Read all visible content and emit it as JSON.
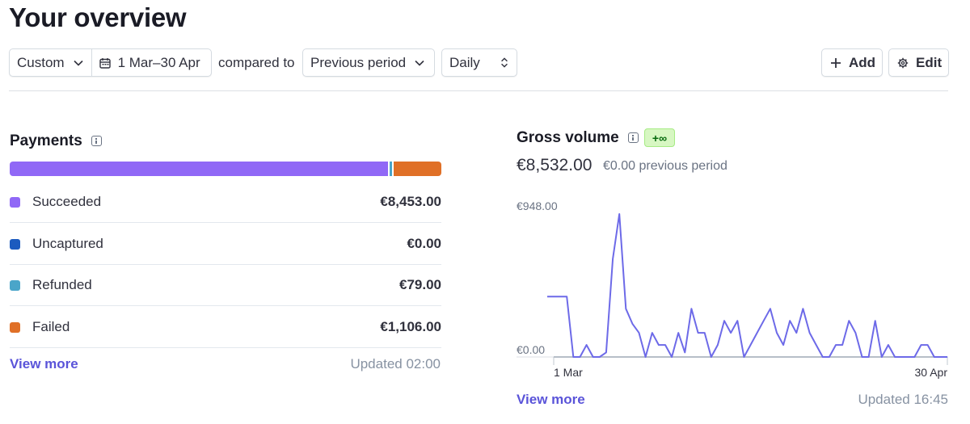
{
  "page": {
    "title": "Your overview"
  },
  "filters": {
    "range_type": "Custom",
    "date_range": "1 Mar–30 Apr",
    "compared_to_label": "compared to",
    "comparison": "Previous period",
    "interval": "Daily"
  },
  "actions": {
    "add_label": "Add",
    "edit_label": "Edit"
  },
  "payments": {
    "title": "Payments",
    "items": [
      {
        "label": "Succeeded",
        "value": "€8,453.00",
        "amount": 8453.0,
        "color": "#9068f6"
      },
      {
        "label": "Uncaptured",
        "value": "€0.00",
        "amount": 0.0,
        "color": "#1c5bbf"
      },
      {
        "label": "Refunded",
        "value": "€79.00",
        "amount": 79.0,
        "color": "#4aa5c9"
      },
      {
        "label": "Failed",
        "value": "€1,106.00",
        "amount": 1106.0,
        "color": "#e07027"
      }
    ],
    "view_more": "View more",
    "updated": "Updated 02:00"
  },
  "gross_volume": {
    "title": "Gross volume",
    "badge": "+∞",
    "amount": "€8,532.00",
    "previous": "€0.00 previous period",
    "view_more": "View more",
    "updated": "Updated 16:45"
  },
  "chart_data": {
    "type": "line",
    "y_max_label": "€948.00",
    "y_min_label": "€0.00",
    "x_start_label": "1 Mar",
    "x_end_label": "30 Apr",
    "ylim": [
      0,
      948
    ],
    "series": [
      {
        "color": "#6d6ae8",
        "values": [
          400,
          400,
          400,
          0,
          0,
          80,
          0,
          0,
          30,
          650,
          948,
          320,
          220,
          160,
          0,
          160,
          80,
          80,
          0,
          160,
          30,
          320,
          160,
          160,
          0,
          80,
          240,
          160,
          240,
          0,
          80,
          160,
          240,
          320,
          160,
          80,
          240,
          160,
          320,
          160,
          80,
          0,
          0,
          80,
          80,
          240,
          160,
          0,
          0,
          240,
          0,
          80,
          0,
          0,
          0,
          0,
          80,
          80,
          0,
          0,
          0
        ]
      },
      {
        "color": "#b7bec8",
        "values": [
          0,
          0,
          0,
          0,
          0,
          0,
          0,
          0,
          0,
          0,
          0,
          0,
          0,
          0,
          0,
          0,
          0,
          0,
          0,
          0,
          0,
          0,
          0,
          0,
          0,
          0,
          0,
          0,
          0,
          0,
          0,
          0,
          0,
          0,
          0,
          0,
          0,
          0,
          0,
          0,
          0,
          0,
          0,
          0,
          0,
          0,
          0,
          0,
          0,
          0,
          0,
          0,
          0,
          0,
          0,
          0,
          0,
          0,
          0,
          0,
          0
        ]
      }
    ]
  }
}
